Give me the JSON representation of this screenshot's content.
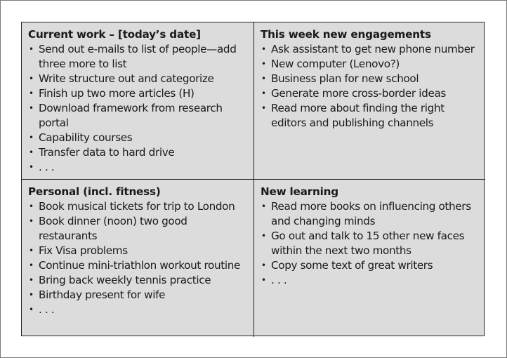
{
  "quadrants": [
    {
      "title": "Current work – [today’s date]",
      "items": [
        "Send out e-mails to list of people—add three more to list",
        "Write structure out and categorize",
        "Finish up two more articles (H)",
        "Download framework from research portal",
        "Capability courses",
        "Transfer data to hard drive",
        ". . ."
      ]
    },
    {
      "title": "This week new engagements",
      "items": [
        "Ask assistant to get new phone number",
        "New computer (Lenovo?)",
        "Business plan for new school",
        "Generate more cross-border ideas",
        "Read more about finding the right editors and publishing channels"
      ]
    },
    {
      "title": "Personal (incl. fitness)",
      "items": [
        "Book musical tickets for trip to London",
        "Book dinner (noon) two good restaurants",
        "Fix Visa problems",
        "Continue mini-triathlon workout routine",
        "Bring back weekly tennis practice",
        "Birthday present for wife",
        ". . ."
      ]
    },
    {
      "title": "New learning",
      "items": [
        "Read more books on influencing others and changing minds",
        "Go out and talk to 15 other new faces within the next two months",
        "Copy some text of great writers",
        ". . ."
      ]
    }
  ]
}
